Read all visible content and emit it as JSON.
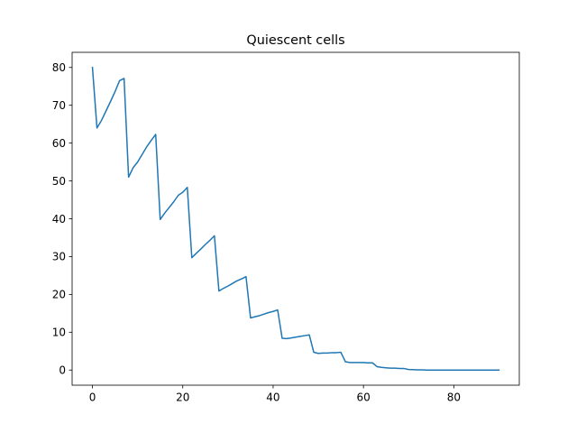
{
  "chart_data": {
    "type": "line",
    "title": "Quiescent cells",
    "xlabel": "",
    "ylabel": "",
    "xlim": [
      -4.5,
      94.5
    ],
    "ylim": [
      -4,
      84
    ],
    "xticks": [
      0,
      20,
      40,
      60,
      80
    ],
    "yticks": [
      0,
      10,
      20,
      30,
      40,
      50,
      60,
      70,
      80
    ],
    "grid": false,
    "legend": "none",
    "series": [
      {
        "color": "#1f77b4",
        "x": [
          0,
          1,
          2,
          3,
          4,
          5,
          6,
          7,
          8,
          9,
          10,
          11,
          12,
          13,
          14,
          15,
          16,
          17,
          18,
          19,
          20,
          21,
          22,
          23,
          24,
          25,
          26,
          27,
          28,
          29,
          30,
          31,
          32,
          33,
          34,
          35,
          36,
          37,
          38,
          39,
          40,
          41,
          42,
          43,
          44,
          45,
          46,
          47,
          48,
          49,
          50,
          51,
          52,
          53,
          54,
          55,
          56,
          57,
          58,
          59,
          60,
          61,
          62,
          63,
          64,
          65,
          66,
          67,
          68,
          69,
          70,
          71,
          72,
          73,
          74,
          75,
          76,
          77,
          78,
          79,
          80,
          81,
          82,
          83,
          84,
          85,
          86,
          87,
          88,
          89,
          90
        ],
        "y": [
          80,
          64,
          66,
          68.5,
          71,
          73.6,
          76.5,
          77.1,
          51,
          53.5,
          55,
          57,
          59,
          60.7,
          62.3,
          39.8,
          41.5,
          43,
          44.5,
          46.2,
          47,
          48.3,
          29.7,
          30.9,
          32,
          33.2,
          34.3,
          35.5,
          20.9,
          21.6,
          22.2,
          22.9,
          23.6,
          24.1,
          24.7,
          13.8,
          14.1,
          14.4,
          14.8,
          15.2,
          15.5,
          15.9,
          8.4,
          8.3,
          8.5,
          8.7,
          8.9,
          9.1,
          9.3,
          4.7,
          4.4,
          4.5,
          4.5,
          4.6,
          4.6,
          4.7,
          2.2,
          2,
          2,
          2,
          2,
          1.9,
          1.9,
          0.9,
          0.7,
          0.6,
          0.5,
          0.5,
          0.4,
          0.4,
          0.15,
          0.1,
          0.05,
          0.05,
          0,
          0,
          0,
          0,
          0,
          0,
          0,
          0,
          0,
          0,
          0,
          0,
          0,
          0,
          0,
          0,
          0
        ]
      }
    ]
  }
}
